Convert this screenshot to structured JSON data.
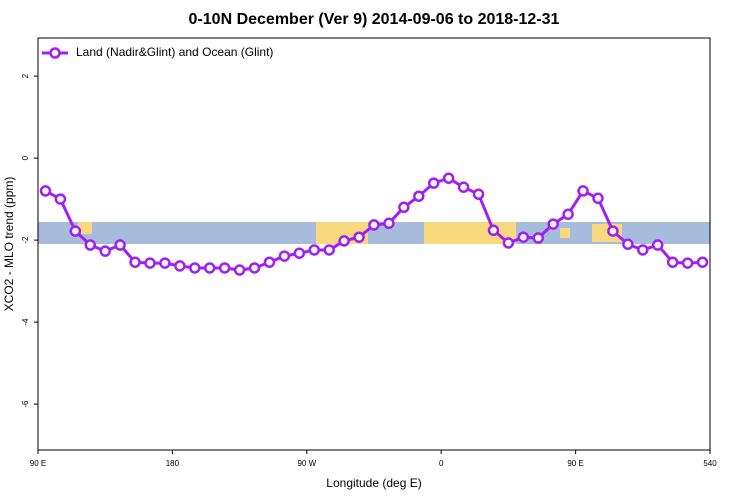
{
  "chart_data": {
    "type": "line",
    "title": "0-10N December (Ver 9)   2014-09-06 to 2018-12-31",
    "x_label": "Longitude (deg E)",
    "y_label": "XCO2 - MLO trend (ppm)",
    "x": [
      95,
      105,
      115,
      125,
      135,
      145,
      155,
      165,
      175,
      185,
      195,
      205,
      215,
      225,
      235,
      245,
      255,
      265,
      275,
      285,
      295,
      305,
      315,
      325,
      335,
      345,
      355,
      365,
      375,
      385,
      395,
      405,
      415,
      425,
      435,
      445,
      455,
      465,
      475,
      485,
      495,
      505,
      515,
      525,
      535
    ],
    "series": [
      {
        "name": "Land (Nadir&Glint) and Ocean (Glint)",
        "color": "#a020f0",
        "values": [
          -0.8,
          -1.0,
          -1.78,
          -2.12,
          -2.27,
          -2.12,
          -2.54,
          -2.56,
          -2.56,
          -2.63,
          -2.68,
          -2.68,
          -2.68,
          -2.73,
          -2.68,
          -2.54,
          -2.39,
          -2.32,
          -2.24,
          -2.24,
          -2.02,
          -1.93,
          -1.63,
          -1.59,
          -1.2,
          -0.93,
          -0.61,
          -0.49,
          -0.71,
          -0.88,
          -1.76,
          -2.07,
          -1.93,
          -1.95,
          -1.61,
          -1.37,
          -0.8,
          -0.98,
          -1.78,
          -2.1,
          -2.24,
          -2.12,
          -2.54,
          -2.56,
          -2.54
        ]
      }
    ],
    "xlim": [
      90,
      540
    ],
    "xticks": [
      {
        "value": 90,
        "label": "90 E"
      },
      180,
      {
        "value": 270,
        "label": "90 W"
      },
      {
        "value": 360,
        "label": "0"
      },
      {
        "value": 450,
        "label": "90 E"
      },
      540
    ],
    "ylim": [
      -7.12,
      2.93
    ],
    "yticks": [
      2,
      0,
      -2,
      -4,
      -6
    ],
    "legend": "top-left"
  }
}
